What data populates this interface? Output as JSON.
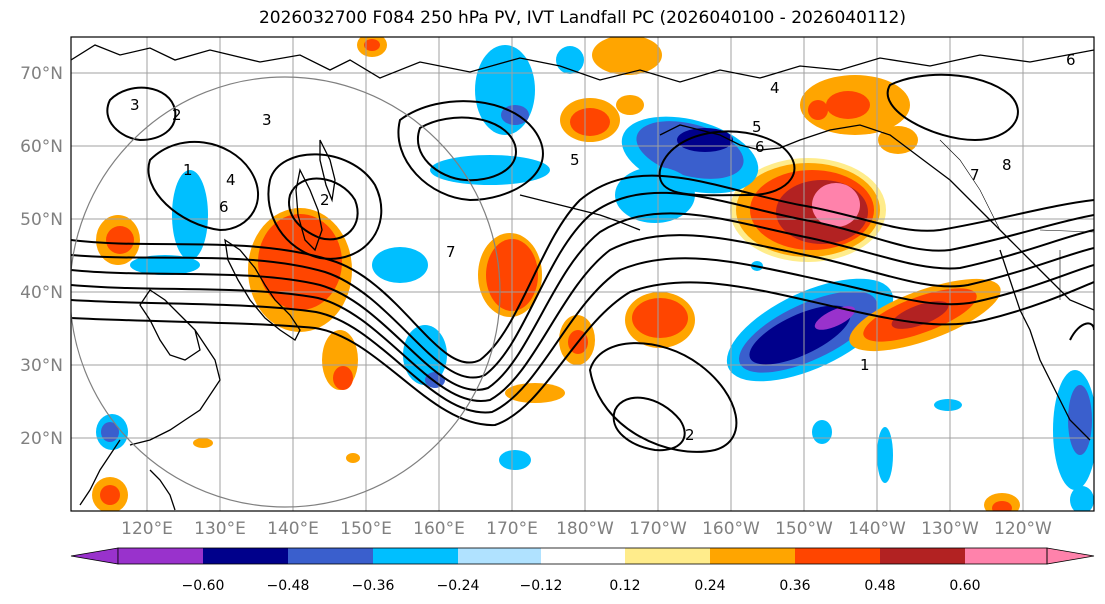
{
  "title": "2026032700 F084 250 hPa PV, IVT Landfall PC (2026040100 - 2026040112)",
  "map": {
    "lat_labels": [
      "70°N",
      "60°N",
      "50°N",
      "40°N",
      "30°N",
      "20°N"
    ],
    "lon_labels": [
      "120°E",
      "130°E",
      "140°E",
      "150°E",
      "160°E",
      "170°E",
      "180°W",
      "170°W",
      "160°W",
      "150°W",
      "140°W",
      "130°W",
      "120°W"
    ],
    "contour_labels": [
      "1",
      "2",
      "3",
      "4",
      "5",
      "6",
      "7",
      "4",
      "5",
      "6",
      "2",
      "7",
      "1",
      "2",
      "3",
      "6",
      "8"
    ]
  },
  "colorbar": {
    "colors": [
      "#9932CC",
      "#00008B",
      "#3A5FCD",
      "#00BFFF",
      "#B0E2FF",
      "#FFFFFF",
      "#FFEC8B",
      "#FFA500",
      "#FF4500",
      "#B22222",
      "#FF82AB"
    ],
    "labels": [
      "−0.60",
      "−0.48",
      "−0.36",
      "−0.24",
      "−0.12",
      "0.12",
      "0.24",
      "0.36",
      "0.48",
      "0.60"
    ]
  }
}
